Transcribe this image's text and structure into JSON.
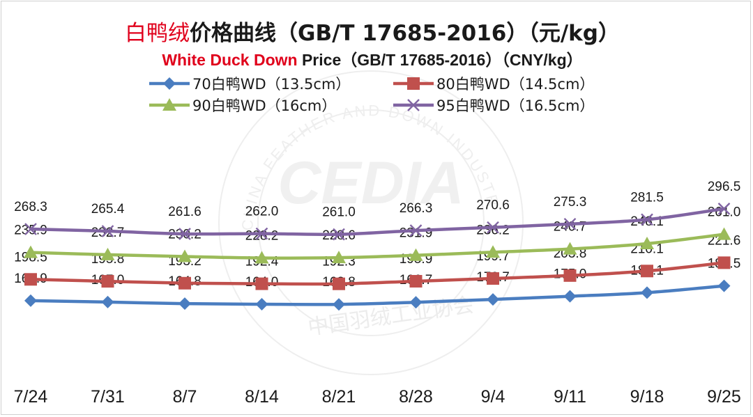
{
  "chart_data": {
    "type": "line",
    "title": {
      "prefix_red": "白鸭绒",
      "rest": "价格曲线（GB/T 17685-2016）（元/kg）"
    },
    "subtitle": {
      "prefix_red": "White Duck Down",
      "rest": " Price（GB/T 17685-2016）（CNY/kg）"
    },
    "categories": [
      "7/24",
      "7/31",
      "8/7",
      "8/14",
      "8/21",
      "8/28",
      "9/4",
      "9/11",
      "9/18",
      "9/25"
    ],
    "series": [
      {
        "name": "70白鸭WD（13.5cm）",
        "color": "#4a7dc0",
        "marker": "diamond",
        "values": [
          168.9,
          167.0,
          164.8,
          164.0,
          163.8,
          166.7,
          170.7,
          175.0,
          180.1,
          189.5
        ]
      },
      {
        "name": "80白鸭WD（14.5cm）",
        "color": "#c0504d",
        "marker": "square",
        "values": [
          198.5,
          195.8,
          193.2,
          192.4,
          192.3,
          195.9,
          199.7,
          203.8,
          210.1,
          221.6
        ]
      },
      {
        "name": "90白鸭WD（16cm）",
        "color": "#9bbb59",
        "marker": "triangle",
        "values": [
          235.9,
          232.7,
          230.2,
          228.2,
          228.6,
          231.9,
          236.2,
          240.7,
          248.1,
          261.0
        ]
      },
      {
        "name": "95白鸭WD（16.5cm）",
        "color": "#8064a2",
        "marker": "x",
        "values": [
          268.3,
          265.4,
          261.6,
          262.0,
          261.0,
          266.3,
          270.6,
          275.3,
          281.5,
          296.5
        ]
      }
    ],
    "legend": "top",
    "grid": false,
    "watermark": {
      "logo": "CEDIA",
      "ring_text": "CHINA FEATHER AND DOWN INDUSTRIAL ASSOCIATION",
      "cn_text": "中国羽绒工业协会"
    },
    "colors": {
      "title_red": "#e0001b",
      "text": "#1a1a1a"
    }
  }
}
